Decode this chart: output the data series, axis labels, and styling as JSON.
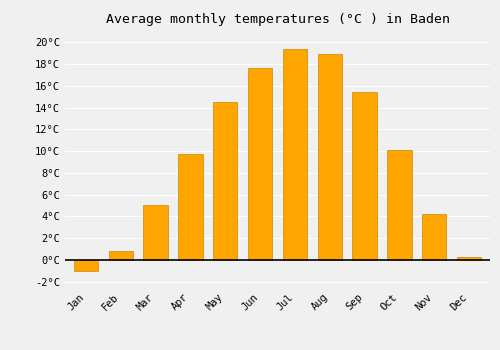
{
  "title": "Average monthly temperatures (°C ) in Baden",
  "months": [
    "Jan",
    "Feb",
    "Mar",
    "Apr",
    "May",
    "Jun",
    "Jul",
    "Aug",
    "Sep",
    "Oct",
    "Nov",
    "Dec"
  ],
  "values": [
    -1.0,
    0.8,
    5.0,
    9.7,
    14.5,
    17.6,
    19.4,
    18.9,
    15.4,
    10.1,
    4.2,
    0.3
  ],
  "bar_color": "#FFA500",
  "bar_edge_color": "#CC8800",
  "ylim": [
    -2.5,
    21
  ],
  "yticks": [
    -2,
    0,
    2,
    4,
    6,
    8,
    10,
    12,
    14,
    16,
    18,
    20
  ],
  "background_color": "#F0F0F0",
  "grid_color": "#FFFFFF",
  "title_fontsize": 9.5,
  "tick_fontsize": 7.5,
  "zero_line_color": "#000000",
  "bar_width": 0.7
}
